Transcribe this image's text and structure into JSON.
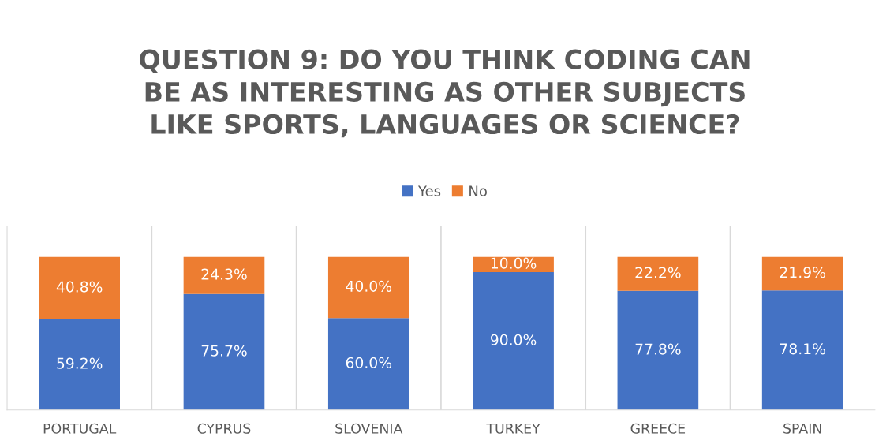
{
  "chart_data": {
    "type": "bar",
    "title": "QUESTION 9: DO YOU THINK CODING CAN\nBE AS INTERESTING AS OTHER SUBJECTS\nLIKE SPORTS, LANGUAGES OR SCIENCE?",
    "categories": [
      "PORTUGAL",
      "CYPRUS",
      "SLOVENIA",
      "TURKEY",
      "GREECE",
      "SPAIN"
    ],
    "stacked": true,
    "legend": "top",
    "grid": "x",
    "series": [
      {
        "name": "Yes",
        "color": "#4472c4",
        "values": [
          59.2,
          75.7,
          60.0,
          90.0,
          77.8,
          78.1
        ],
        "value_labels": [
          "59.2%",
          "75.7%",
          "60.0%",
          "90.0%",
          "77.8%",
          "78.1%"
        ]
      },
      {
        "name": "No",
        "color": "#ed7d31",
        "values": [
          40.8,
          24.3,
          40.0,
          10.0,
          22.2,
          21.9
        ],
        "value_labels": [
          "40.8%",
          "24.3%",
          "40.0%",
          "10.0%",
          "22.2%",
          "21.9%"
        ]
      }
    ]
  }
}
